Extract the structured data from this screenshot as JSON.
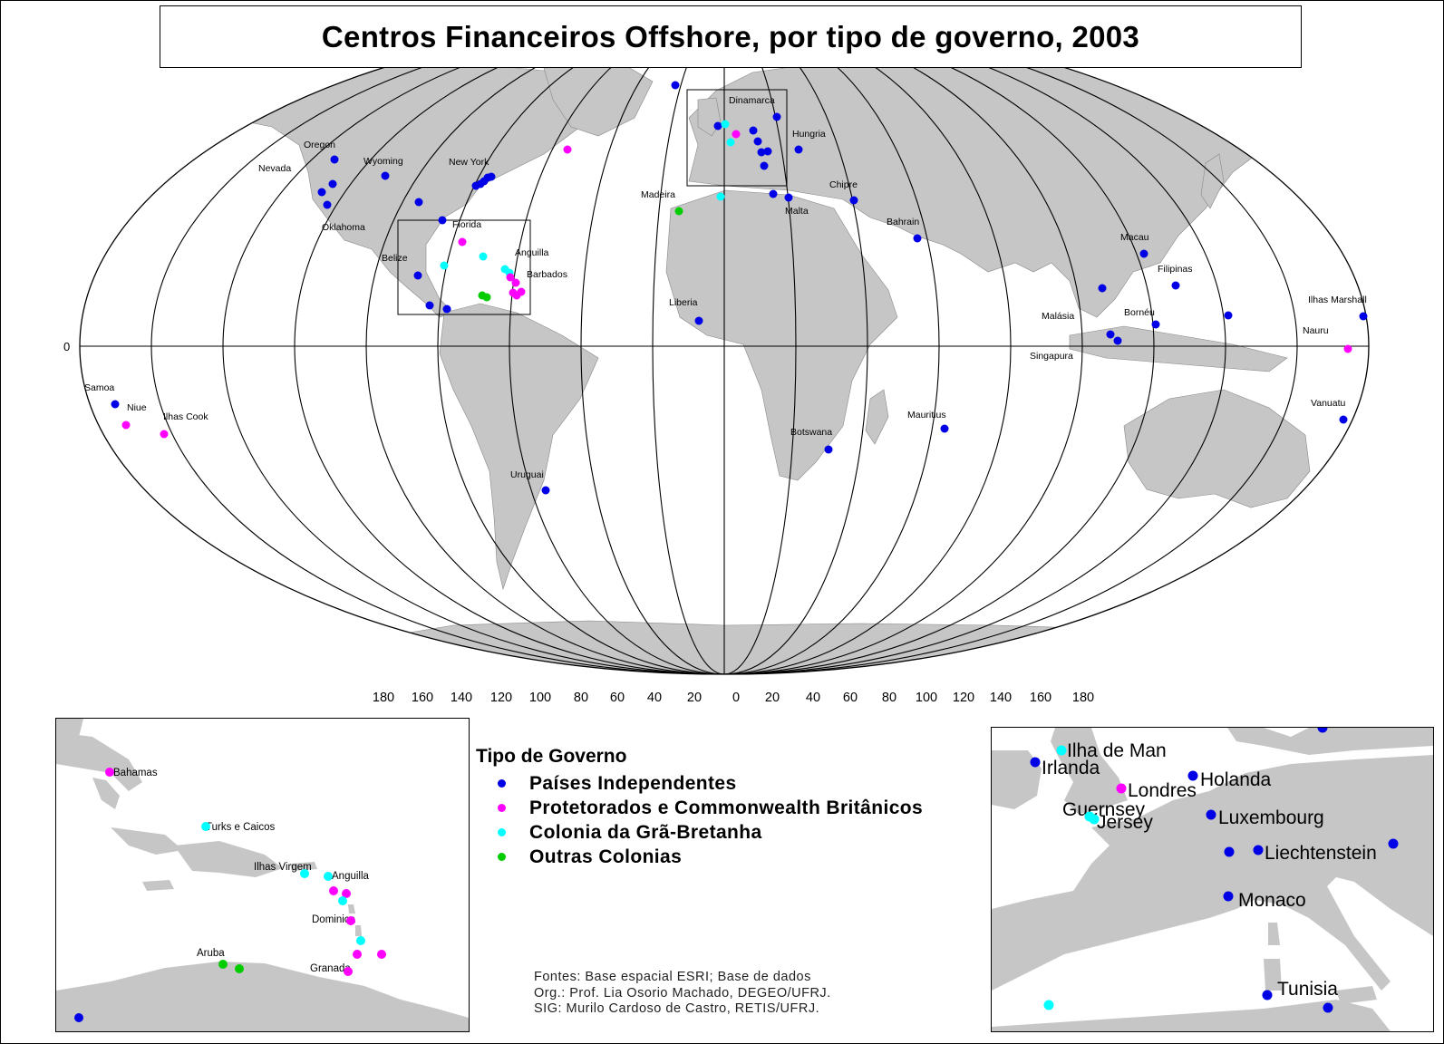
{
  "title": "Centros Financeiros Offshore, por tipo de governo, 2003",
  "colors": {
    "land": "#c6c6c6",
    "independent": "#0000e6",
    "protectorate": "#ff00ff",
    "british_colony": "#00ffff",
    "other_colony": "#00cc00"
  },
  "equator_label": "0",
  "longitude_labels": [
    "180",
    "160",
    "140",
    "120",
    "100",
    "80",
    "60",
    "40",
    "20",
    "0",
    "20",
    "40",
    "60",
    "80",
    "100",
    "120",
    "140",
    "160",
    "180"
  ],
  "place_labels": [
    "Oregon",
    "Nevada",
    "Wyoming",
    "New York",
    "Oklahoma",
    "Florida",
    "Belize",
    "Anguilla",
    "Barbados",
    "Samoa",
    "Niue",
    "Ilhas Cook",
    "Uruguai",
    "Madeira",
    "Liberia",
    "Dinamarca",
    "Hungria",
    "Chipre",
    "Malta",
    "Bahrain",
    "Botswana",
    "Mauritius",
    "Macau",
    "Filipinas",
    "Malásia",
    "Bornéu",
    "Singapura",
    "Ilhas Marshall",
    "Nauru",
    "Vanuatu"
  ],
  "legend": {
    "title": "Tipo de Governo",
    "items": [
      {
        "label": "Países Independentes",
        "color": "#0000e6"
      },
      {
        "label": "Protetorados e Commonwealth Britânicos",
        "color": "#ff00ff"
      },
      {
        "label": "Colonia da Grã-Bretanha",
        "color": "#00ffff"
      },
      {
        "label": "Outras Colonias",
        "color": "#00cc00"
      }
    ]
  },
  "sources": [
    "Fontes: Base espacial ESRI; Base de dados",
    "Org.: Prof. Lia Osorio Machado, DEGEO/UFRJ.",
    "SIG: Murilo Cardoso de Castro, RETIS/UFRJ."
  ],
  "caribbean_inset": {
    "labels": [
      "Bahamas",
      "Turks e Caicos",
      "Ilhas Virgem",
      "Anguilla",
      "Dominica",
      "Aruba",
      "Granada"
    ]
  },
  "europe_inset": {
    "labels": [
      "Ilha de Man",
      "Irlanda",
      "Londres",
      "Holanda",
      "Guernsey",
      "Jersey",
      "Luxembourg",
      "Liechtenstein",
      "Monaco",
      "Tunisia"
    ]
  }
}
